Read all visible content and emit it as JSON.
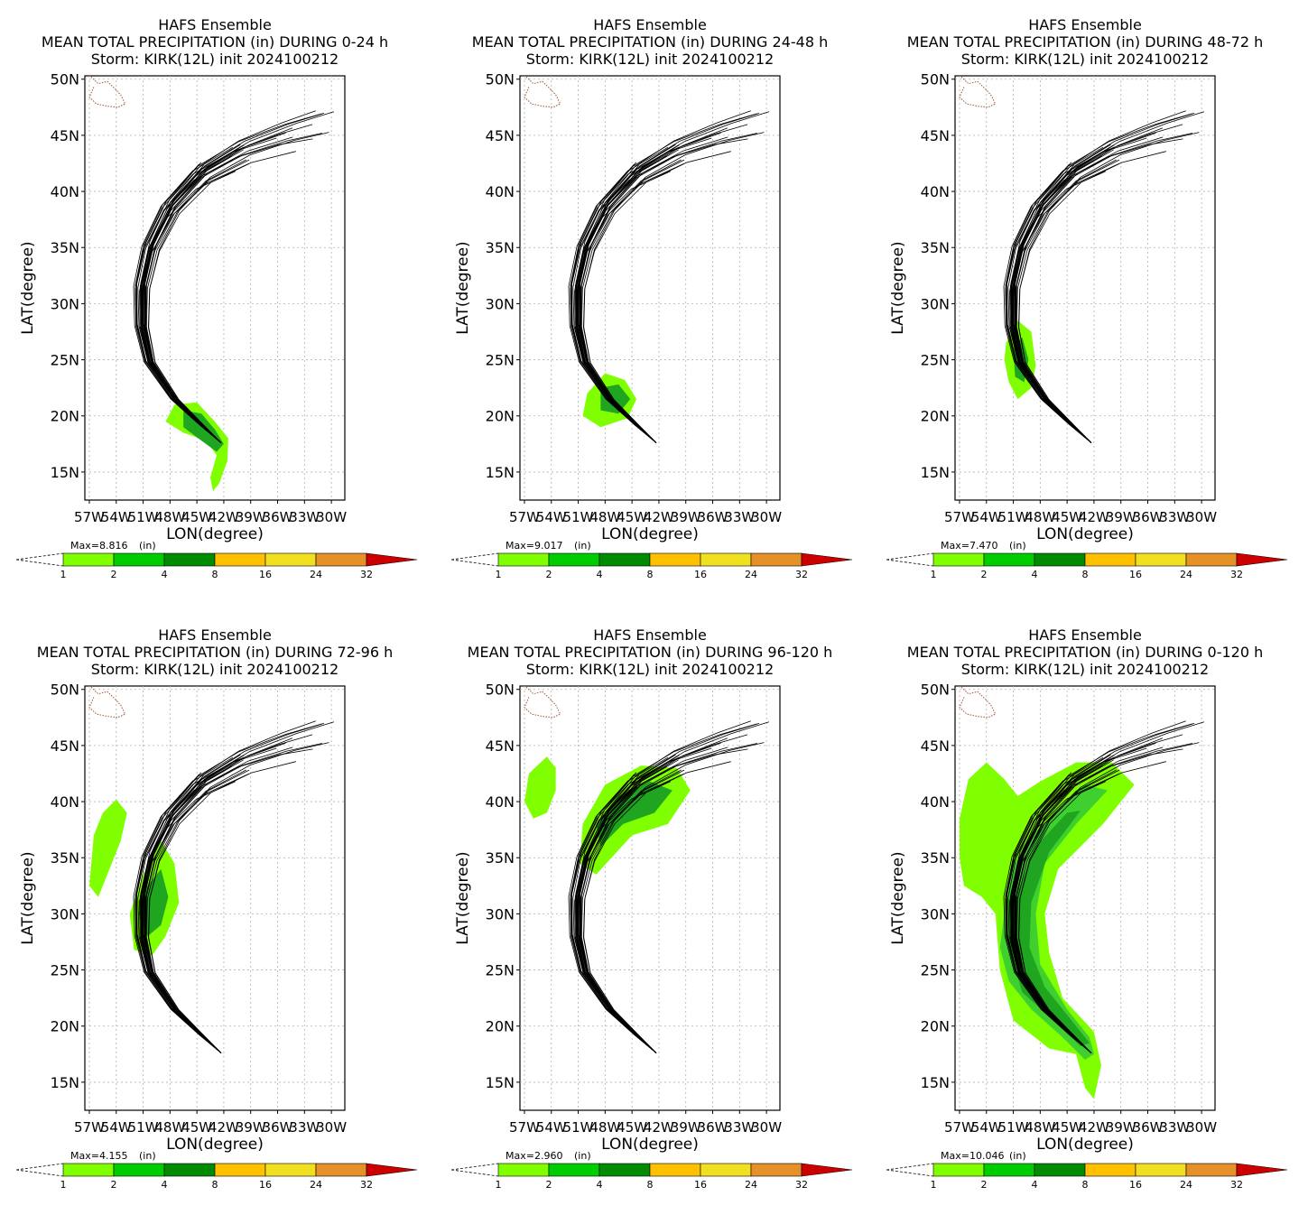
{
  "panels": [
    {
      "title1": "HAFS Ensemble",
      "title2": "MEAN TOTAL PRECIPITATION (in) DURING  0-24 h",
      "title3": "Storm: KIRK(12L) init 2024100212",
      "max_label": "Max=8.816",
      "max_value": 8.816,
      "window": "0-24 h",
      "precip": "p0"
    },
    {
      "title1": "HAFS Ensemble",
      "title2": "MEAN TOTAL PRECIPITATION (in) DURING 24-48 h",
      "title3": "Storm: KIRK(12L) init 2024100212",
      "max_label": "Max=9.017",
      "max_value": 9.017,
      "window": "24-48 h",
      "precip": "p1"
    },
    {
      "title1": "HAFS Ensemble",
      "title2": "MEAN TOTAL PRECIPITATION (in) DURING 48-72 h",
      "title3": "Storm: KIRK(12L) init 2024100212",
      "max_label": "Max=7.470",
      "max_value": 7.47,
      "window": "48-72 h",
      "precip": "p2"
    },
    {
      "title1": "HAFS Ensemble",
      "title2": "MEAN TOTAL PRECIPITATION (in) DURING 72-96 h",
      "title3": "Storm: KIRK(12L) init 2024100212",
      "max_label": "Max=4.155",
      "max_value": 4.155,
      "window": "72-96 h",
      "precip": "p3"
    },
    {
      "title1": "HAFS Ensemble",
      "title2": "MEAN TOTAL PRECIPITATION (in) DURING 96-120 h",
      "title3": "Storm: KIRK(12L) init 2024100212",
      "max_label": "Max=2.960",
      "max_value": 2.96,
      "window": "96-120 h",
      "precip": "p4"
    },
    {
      "title1": "HAFS Ensemble",
      "title2": "MEAN TOTAL PRECIPITATION (in) DURING 0-120 h",
      "title3": "Storm: KIRK(12L) init 2024100212",
      "max_label": "Max=10.046",
      "max_value": 10.046,
      "window": "0-120 h",
      "precip": "p5"
    }
  ],
  "axes": {
    "xlabel": "LON(degree)",
    "ylabel": "LAT(degree)",
    "lon_ticks": [
      "57W",
      "54W",
      "51W",
      "48W",
      "45W",
      "42W",
      "39W",
      "36W",
      "33W",
      "30W"
    ],
    "lon_values": [
      -57,
      -54,
      -51,
      -48,
      -45,
      -42,
      -39,
      -36,
      -33,
      -30
    ],
    "lat_ticks": [
      "15N",
      "20N",
      "25N",
      "30N",
      "35N",
      "40N",
      "45N",
      "50N"
    ],
    "lat_values": [
      15,
      20,
      25,
      30,
      35,
      40,
      45,
      50
    ],
    "lon_range": [
      -57.5,
      -28.5
    ],
    "lat_range": [
      12.5,
      50.3
    ]
  },
  "colorbar": {
    "unit_label": "(in)",
    "levels": [
      "1",
      "2",
      "4",
      "8",
      "16",
      "24",
      "32"
    ],
    "colors": [
      "#7fff00",
      "#00cd00",
      "#008b00",
      "#ffc000",
      "#f0e020",
      "#e69028",
      "#cd0000"
    ]
  },
  "tracks": {
    "color": "#000000",
    "member_count": 30
  },
  "coast_color": "#a0522d",
  "precip_colors": {
    "light": "#7fff00",
    "medium": "#3fcf2f",
    "dark": "#1fa51f"
  }
}
